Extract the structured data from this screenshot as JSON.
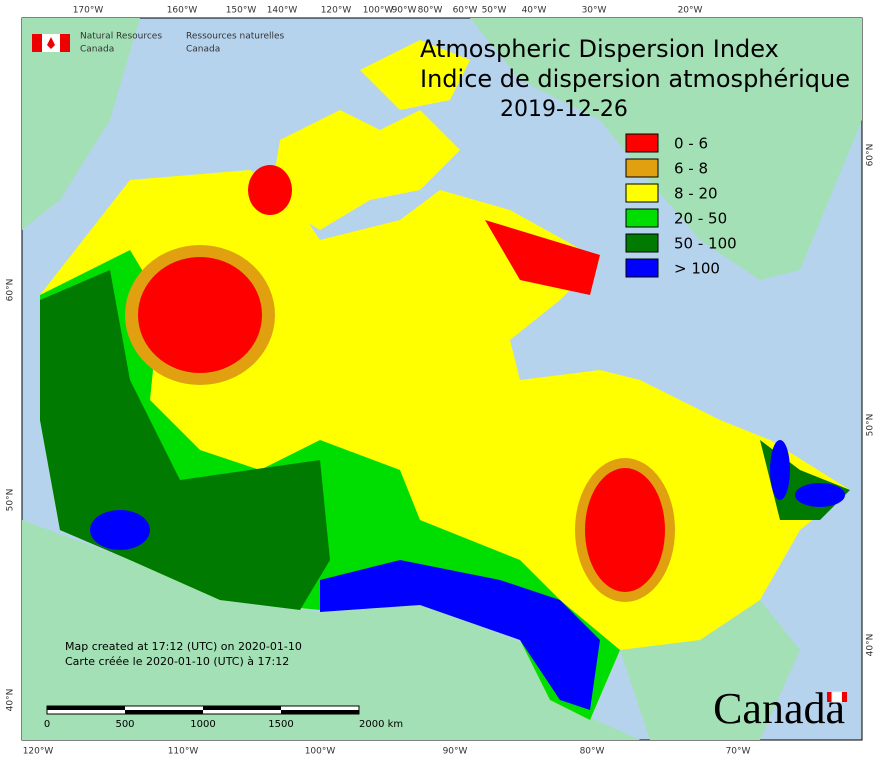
{
  "header": {
    "agency_en": [
      "Natural Resources",
      "Canada"
    ],
    "agency_fr": [
      "Ressources naturelles",
      "Canada"
    ]
  },
  "title": [
    "Atmospheric Dispersion Index",
    "Indice de dispersion atmosphérique"
  ],
  "date": "2019-12-26",
  "legend": [
    {
      "label": "0 - 6",
      "color": "#ff0000"
    },
    {
      "label": "6 - 8",
      "color": "#e0a010"
    },
    {
      "label": "8 - 20",
      "color": "#ffff00"
    },
    {
      "label": "20 - 50",
      "color": "#00dd00"
    },
    {
      "label": "50 - 100",
      "color": "#007a00"
    },
    {
      "label": "> 100",
      "color": "#0000ff"
    }
  ],
  "credits": [
    "Map created at 17:12 (UTC) on 2020-01-10",
    "Carte créée le 2020-01-10 (UTC) à 17:12"
  ],
  "scale_bar": [
    "0",
    "500",
    "1000",
    "1500",
    "2000 km"
  ],
  "wordmark": "Canada",
  "top_labels": [
    "170°W",
    "160°W",
    "150°W",
    "140°W",
    "120°W",
    "100°W",
    "90°W",
    "80°W",
    "60°W",
    "50°W",
    "40°W",
    "30°W",
    "20°W"
  ],
  "bottom_labels": [
    "120°W",
    "110°W",
    "100°W",
    "90°W",
    "80°W",
    "70°W"
  ],
  "left_labels": [
    "60°N",
    "50°N",
    "40°N"
  ],
  "right_labels": [
    "60°N",
    "50°N",
    "40°N"
  ]
}
